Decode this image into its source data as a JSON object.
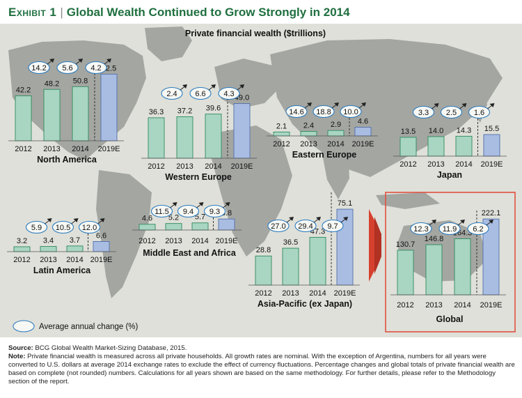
{
  "exhibit": {
    "label": "Exhibit 1",
    "separator": "|",
    "title": "Global Wealth Continued to Grow Strongly in 2014"
  },
  "subtitle": "Private financial wealth ($trillions)",
  "legend": {
    "label": "Average annual change (%)"
  },
  "colors": {
    "green_bar": "#a9d5c3",
    "blue_bar": "#a9bde3",
    "bar_stroke": "#2e8a5b",
    "accent": "#1f6f3f",
    "arrow": "#d6402e",
    "global_box": "#e05040",
    "map": "#a4a6a2",
    "background": "#dfe0d9"
  },
  "chart_data": [
    {
      "type": "bar",
      "title": "North America",
      "categories": [
        "2012",
        "2013",
        "2014",
        "2019E"
      ],
      "values": [
        42.2,
        48.2,
        50.8,
        62.5
      ],
      "changes": [
        "14.2",
        "5.6",
        "4.2"
      ]
    },
    {
      "type": "bar",
      "title": "Western Europe",
      "categories": [
        "2012",
        "2013",
        "2014",
        "2019E"
      ],
      "values": [
        36.3,
        37.2,
        39.6,
        49.0
      ],
      "changes": [
        "2.4",
        "6.6",
        "4.3"
      ]
    },
    {
      "type": "bar",
      "title": "Eastern Europe",
      "categories": [
        "2012",
        "2013",
        "2014",
        "2019E"
      ],
      "values": [
        2.1,
        2.4,
        2.9,
        4.6
      ],
      "changes": [
        "14.6",
        "18.8",
        "10.0"
      ]
    },
    {
      "type": "bar",
      "title": "Japan",
      "categories": [
        "2012",
        "2013",
        "2014",
        "2019E"
      ],
      "values": [
        13.5,
        14.0,
        14.3,
        15.5
      ],
      "changes": [
        "3.3",
        "2.5",
        "1.6"
      ]
    },
    {
      "type": "bar",
      "title": "Latin America",
      "categories": [
        "2012",
        "2013",
        "2014",
        "2019E"
      ],
      "values": [
        3.2,
        3.4,
        3.7,
        6.6
      ],
      "changes": [
        "5.9",
        "10.5",
        "12.0"
      ]
    },
    {
      "type": "bar",
      "title": "Middle East and Africa",
      "categories": [
        "2012",
        "2013",
        "2014",
        "2019E"
      ],
      "values": [
        4.6,
        5.2,
        5.7,
        8.8
      ],
      "changes": [
        "11.5",
        "9.4",
        "9.3"
      ]
    },
    {
      "type": "bar",
      "title": "Asia-Pacific (ex Japan)",
      "categories": [
        "2012",
        "2013",
        "2014",
        "2019E"
      ],
      "values": [
        28.8,
        36.5,
        47.3,
        75.1
      ],
      "changes": [
        "27.0",
        "29.4",
        "9.7"
      ]
    },
    {
      "type": "bar",
      "title": "Global",
      "categories": [
        "2012",
        "2013",
        "2014",
        "2019E"
      ],
      "values": [
        130.7,
        146.8,
        164.3,
        222.1
      ],
      "changes": [
        "12.3",
        "11.9",
        "6.2"
      ]
    }
  ],
  "footer": {
    "source_label": "Source:",
    "source_text": " BCG Global Wealth Market-Sizing Database, 2015.",
    "note_label": "Note:",
    "note_text": " Private financial wealth is measured across all private households. All growth rates are nominal. With the exception of Argentina, numbers for all years were converted to U.S. dollars at average 2014 exchange rates to exclude the effect of currency fluctuations. Percentage changes and global totals of private financial wealth are based on complete (not rounded) numbers. Calculations for all years shown are based on the same methodology. For further details, please refer to the Methodology section of the report."
  }
}
